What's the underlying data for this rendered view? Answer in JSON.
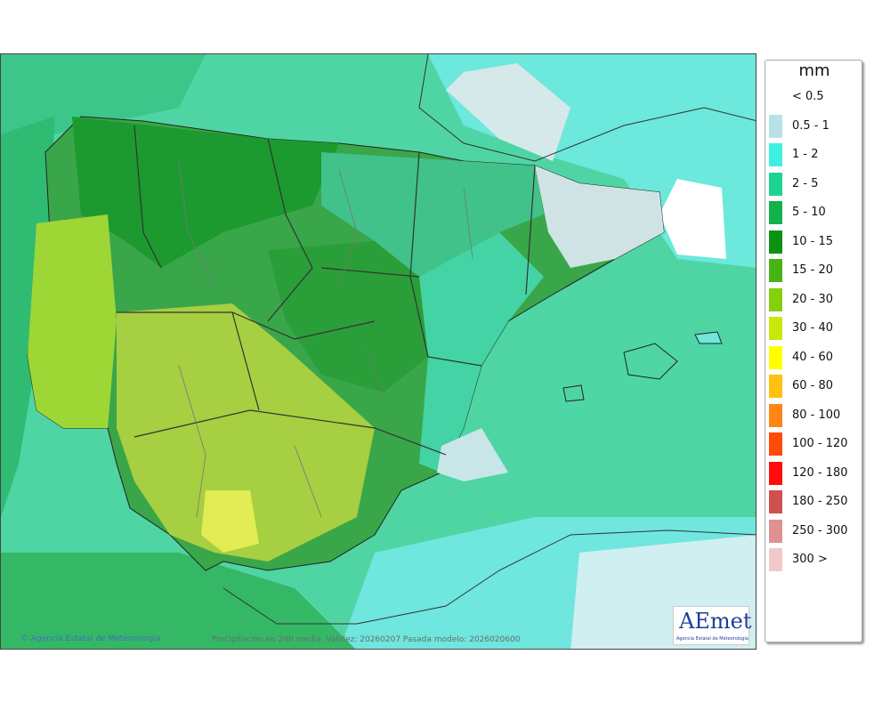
{
  "map": {
    "credit": "Agencia Estatal de Meteorología",
    "caption": "Precipitación en 24h media. Validez: 20260207 Pasada modelo: 2026020600",
    "logo": {
      "wordmark": "AEmet",
      "subtitle": "Agencia Estatal de Meteorología"
    }
  },
  "legend": {
    "unit": "mm",
    "items": [
      {
        "label": "< 0.5",
        "color": "#ffffff"
      },
      {
        "label": "0.5 - 1",
        "color": "#b8e3e6"
      },
      {
        "label": "1 - 2",
        "color": "#3ff0e0"
      },
      {
        "label": "2 - 5",
        "color": "#1ed392"
      },
      {
        "label": "5 - 10",
        "color": "#13b24c"
      },
      {
        "label": "10 - 15",
        "color": "#0b9212"
      },
      {
        "label": "15 - 20",
        "color": "#47b314"
      },
      {
        "label": "20 - 30",
        "color": "#85cf0d"
      },
      {
        "label": "30 - 40",
        "color": "#c8e80a"
      },
      {
        "label": "40 - 60",
        "color": "#ffff00"
      },
      {
        "label": "60 - 80",
        "color": "#ffc10e"
      },
      {
        "label": "80 - 100",
        "color": "#ff8514"
      },
      {
        "label": "100 - 120",
        "color": "#ff4a0a"
      },
      {
        "label": "120 - 180",
        "color": "#ff0d0d"
      },
      {
        "label": "180 - 250",
        "color": "#cf5050"
      },
      {
        "label": "250 - 300",
        "color": "#dd9191"
      },
      {
        "label": "300 >",
        "color": "#f2c9c9"
      }
    ]
  }
}
